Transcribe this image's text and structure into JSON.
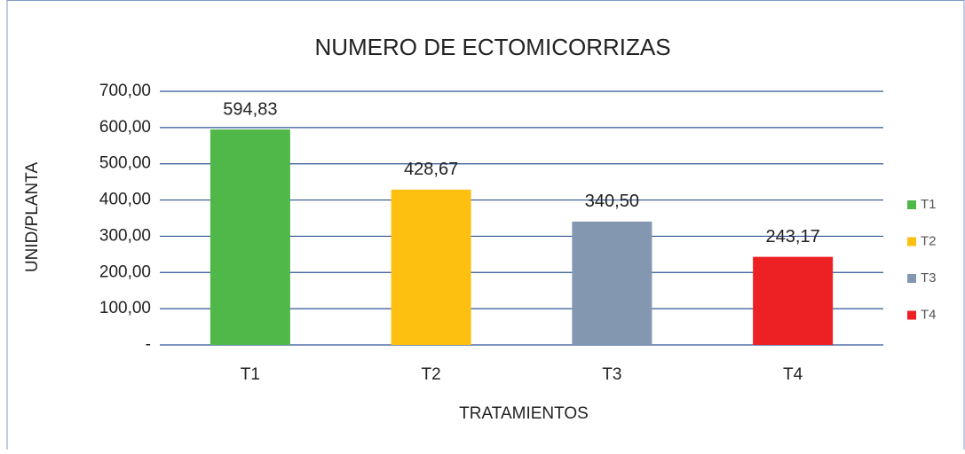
{
  "chart_data": {
    "type": "bar",
    "title": "NUMERO DE ECTOMICORRIZAS",
    "x_label": "TRATAMIENTOS",
    "y_label": "UNID/PLANTA",
    "categories": [
      "T1",
      "T2",
      "T3",
      "T4"
    ],
    "values": [
      594.83,
      428.67,
      340.5,
      243.17
    ],
    "value_labels": [
      "594,83",
      "428,67",
      "340,50",
      "243,17"
    ],
    "colors": [
      "#4fb848",
      "#fdbf10",
      "#8497b0",
      "#ed2024"
    ],
    "ylim": [
      0,
      700
    ],
    "yticks": [
      {
        "value": 0,
        "label": "-"
      },
      {
        "value": 100,
        "label": "100,00"
      },
      {
        "value": 200,
        "label": "200,00"
      },
      {
        "value": 300,
        "label": "300,00"
      },
      {
        "value": 400,
        "label": "400,00"
      },
      {
        "value": 500,
        "label": "500,00"
      },
      {
        "value": 600,
        "label": "600,00"
      },
      {
        "value": 700,
        "label": "700,00"
      }
    ],
    "grid": true,
    "legend": "right"
  }
}
